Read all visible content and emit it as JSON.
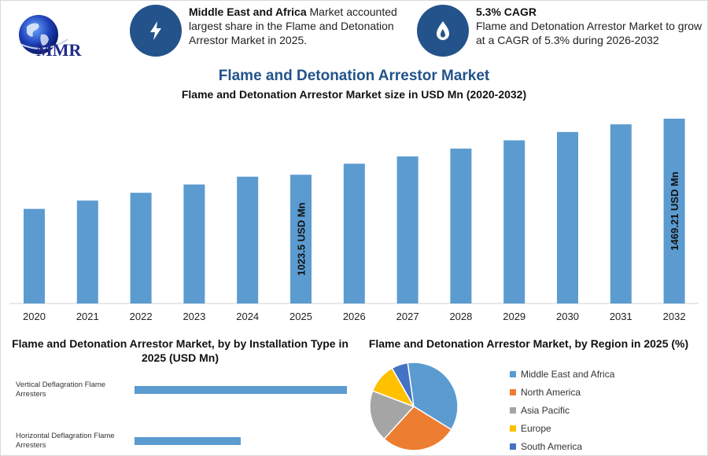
{
  "header": {
    "logo_text": "MMR",
    "info1": {
      "bold": "Middle East and Africa",
      "text": " Market accounted largest share in the Flame and Detonation Arrestor Market in 2025.",
      "icon": "lightning-icon"
    },
    "info2": {
      "bold": "5.3% CAGR",
      "text": "Flame and Detonation Arrestor Market to grow at a CAGR of 5.3% during 2026-2032",
      "icon": "flame-drop-icon"
    }
  },
  "colors": {
    "bar": "#5b9bd0",
    "accent": "#23538a",
    "region_colors": [
      "#5b9bd0",
      "#ed7d31",
      "#a5a5a5",
      "#ffc000",
      "#4472c4"
    ]
  },
  "chart_data": [
    {
      "type": "bar",
      "title": "Flame and Detonation Arrestor Market",
      "subtitle": "Flame and Detonation Arrestor Market size in USD Mn (2020-2032)",
      "categories": [
        "2020",
        "2021",
        "2022",
        "2023",
        "2024",
        "2025",
        "2026",
        "2027",
        "2028",
        "2029",
        "2030",
        "2031",
        "2032"
      ],
      "values": [
        752,
        818,
        880,
        946,
        1008,
        1023.5,
        1111,
        1169,
        1231,
        1297,
        1363,
        1424,
        1469.21
      ],
      "ylim": [
        0,
        1500
      ],
      "annotations": [
        {
          "category": "2025",
          "label": "1023.5 USD Mn"
        },
        {
          "category": "2032",
          "label": "1469.21 USD Mn"
        }
      ]
    },
    {
      "type": "bar",
      "orientation": "horizontal",
      "title": "Flame and Detonation Arrestor Market, by by Installation Type in 2025 (USD Mn)",
      "categories": [
        "Vertical Deflagration Flame Arresters",
        "Horizontal Deflagration Flame Arresters"
      ],
      "values": [
        620,
        310
      ],
      "xlim": [
        0,
        620
      ]
    },
    {
      "type": "pie",
      "title": "Flame and Detonation Arrestor Market, by Region in 2025 (%)",
      "labels": [
        "Middle East and Africa",
        "North America",
        "Asia Pacific",
        "Europe",
        "South America"
      ],
      "values": [
        36,
        28,
        19,
        11,
        6
      ],
      "legend_position": "right"
    }
  ]
}
